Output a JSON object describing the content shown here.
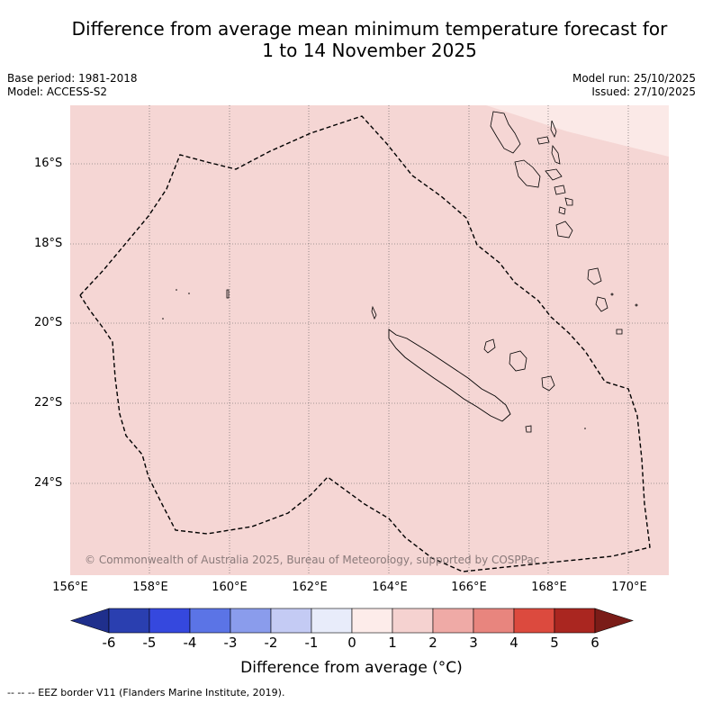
{
  "title_line1": "Difference from average mean minimum temperature forecast for",
  "title_line2": "1 to 14 November 2025",
  "base_period": "Base period: 1981-2018",
  "model": "Model: ACCESS-S2",
  "model_run": "Model run: 25/10/2025",
  "issued": "Issued: 27/10/2025",
  "copyright": "© Commonwealth of Australia 2025, Bureau of Meteorology, supported by COSPPac",
  "lat_labels": [
    "16°S",
    "18°S",
    "20°S",
    "22°S",
    "24°S"
  ],
  "lon_labels": [
    "156°E",
    "158°E",
    "160°E",
    "162°E",
    "164°E",
    "166°E",
    "168°E",
    "170°E"
  ],
  "colorbar": {
    "ticks": [
      "-6",
      "-5",
      "-4",
      "-3",
      "-2",
      "-1",
      "0",
      "1",
      "2",
      "3",
      "4",
      "5",
      "6"
    ],
    "colors": [
      "#1f2f8c",
      "#2a3fb0",
      "#3548de",
      "#5b74e6",
      "#8a9cec",
      "#c4cbf4",
      "#e8ecfa",
      "#fdecea",
      "#f5d2d0",
      "#efaaa6",
      "#e8857e",
      "#dc4a3e",
      "#aa2620",
      "#7a1c18"
    ],
    "label": "Difference from average (°C)"
  },
  "map_fill_color": "#f5d6d4",
  "map_fill_light": "#fbe9e7",
  "footer": "-- -- -- EEZ border V11 (Flanders Marine Institute, 2019)."
}
